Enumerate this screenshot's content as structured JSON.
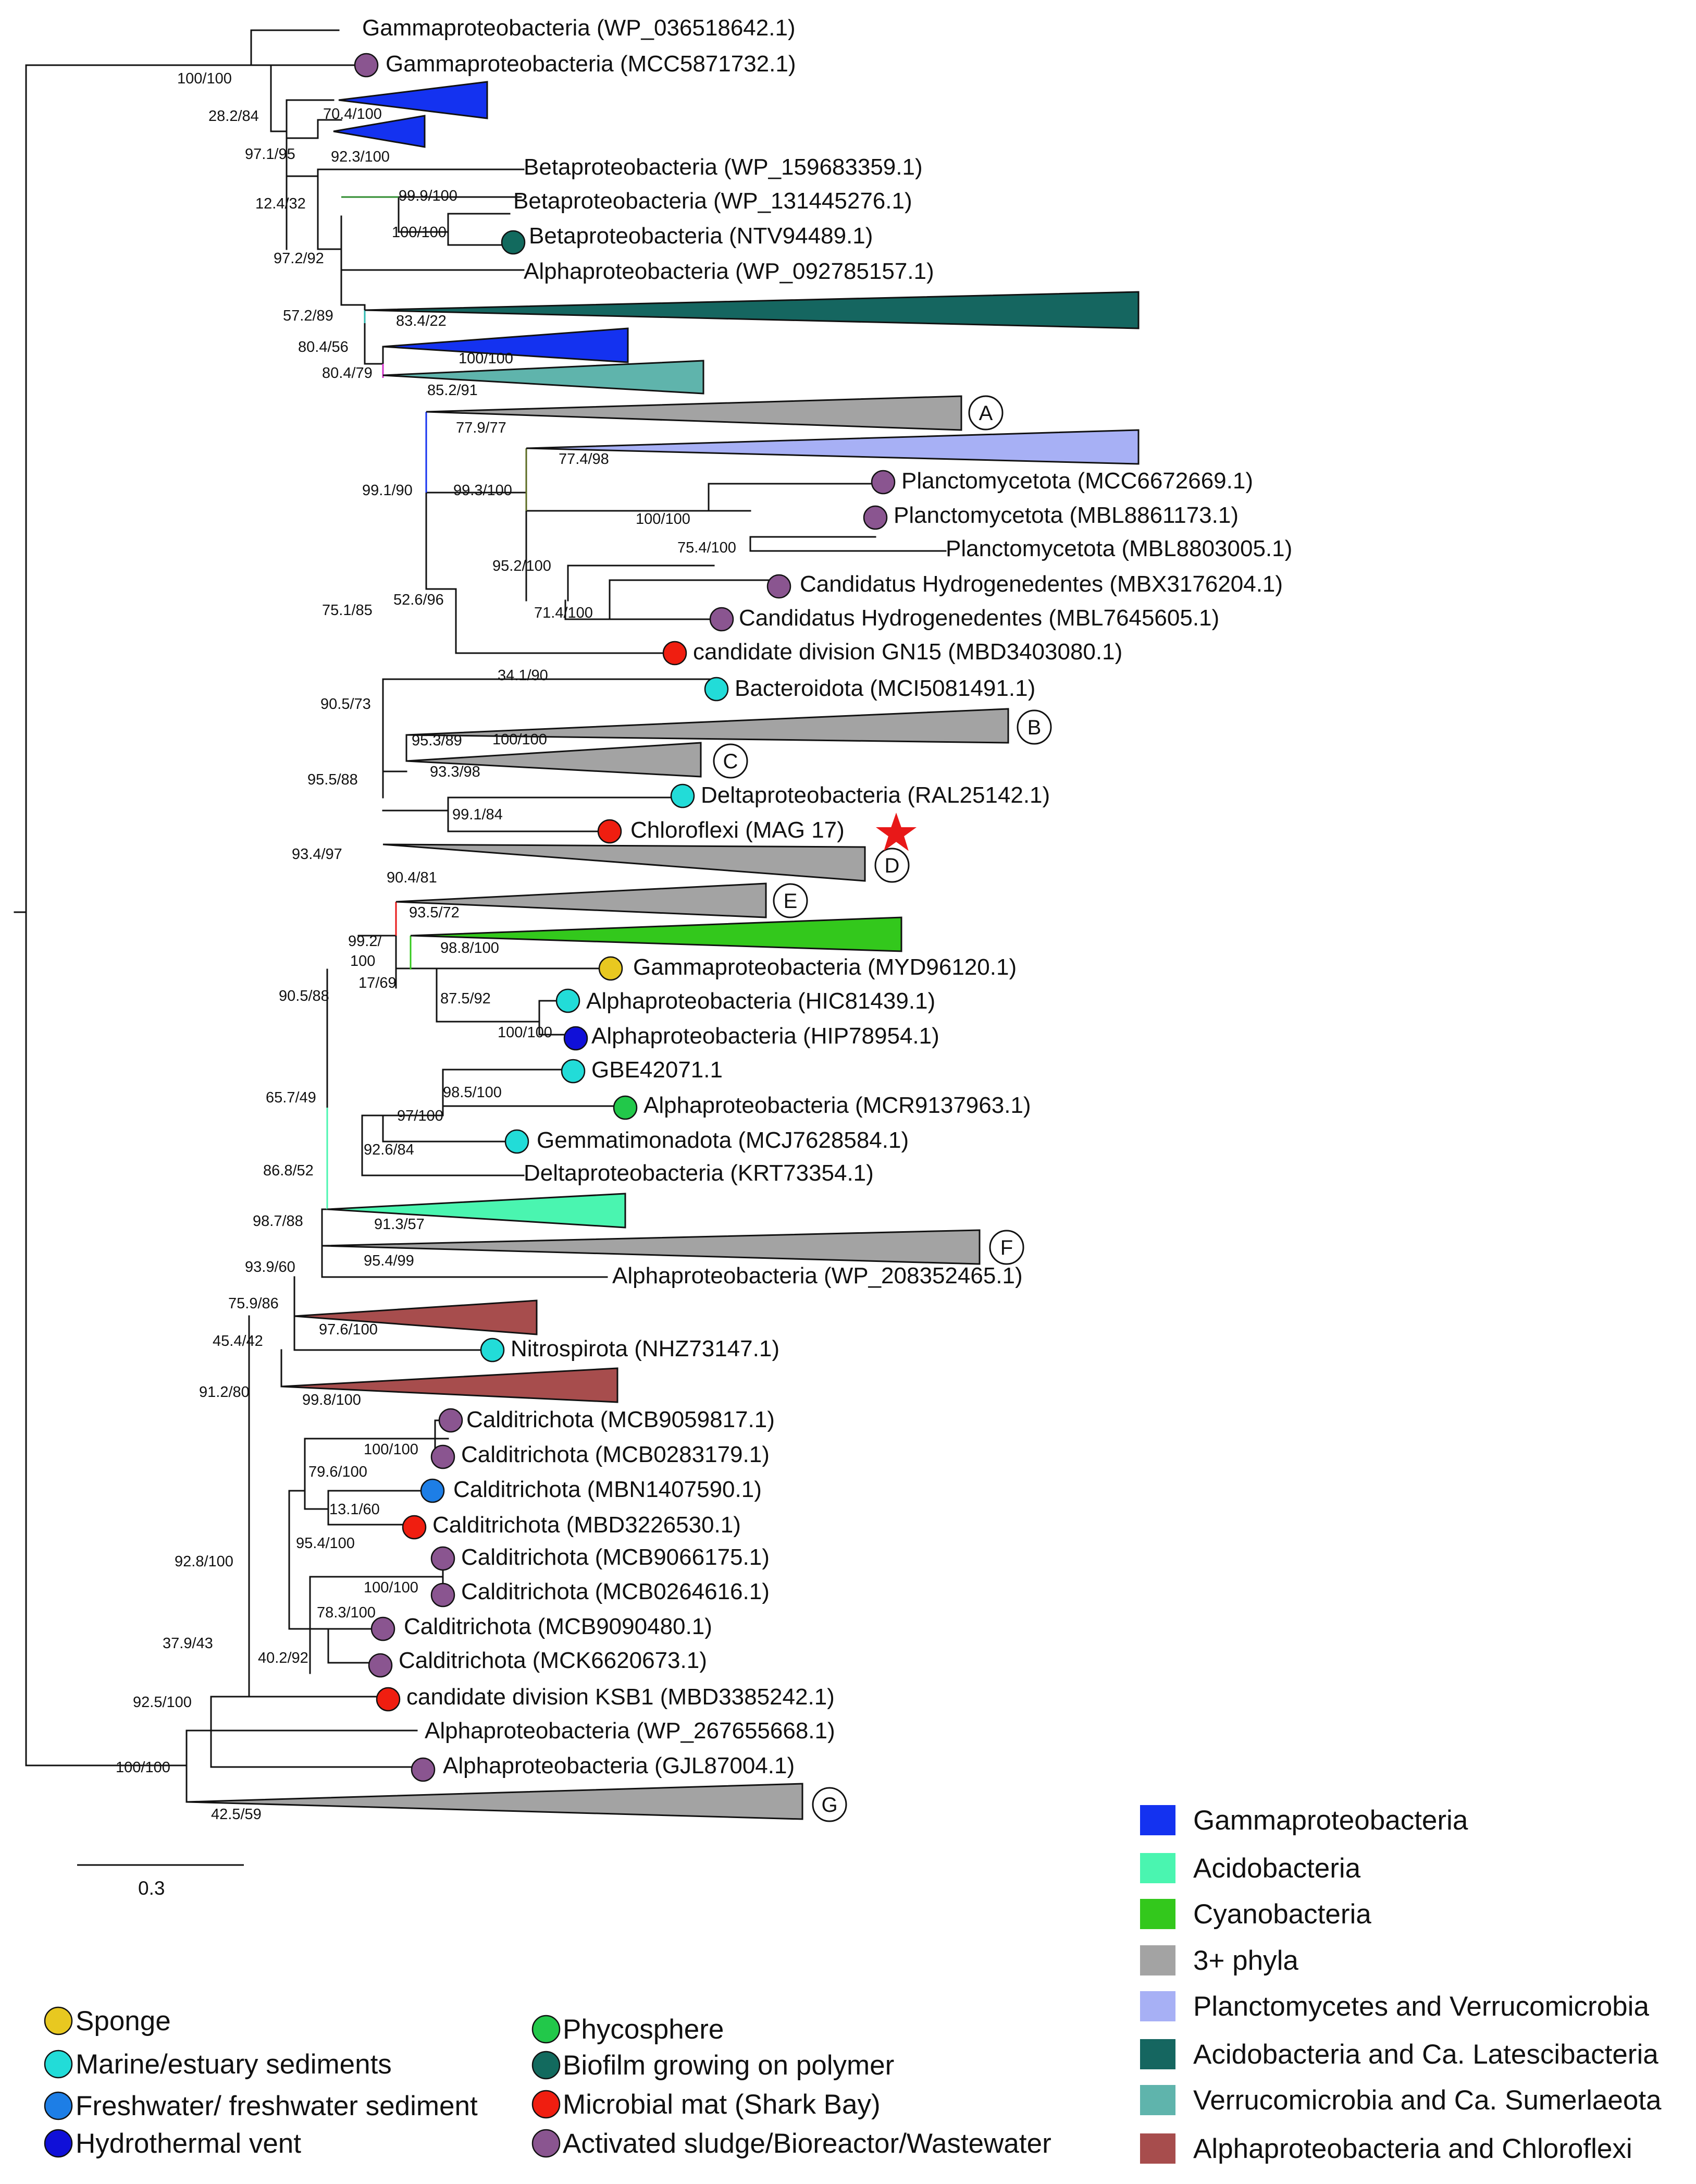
{
  "colors": {
    "sponge": "#e8c820",
    "marine": "#22dcd8",
    "freshwater": "#1d7ee6",
    "hydrothermal": "#1010d8",
    "phycosphere": "#22c84a",
    "biofilm": "#126a5e",
    "microbial_mat": "#f01e10",
    "sludge": "#8a5590",
    "gammaproteobacteria": "#1432f0",
    "acidobacteria": "#4af5b0",
    "cyanobacteria": "#33c81c",
    "three_phyla": "#a3a3a3",
    "plancto_verruco": "#a7b0f5",
    "acido_latesci": "#156660",
    "verruco_sumerl": "#5fb4ac",
    "alpha_chloro": "#a74d4d",
    "star": "#e81818"
  },
  "tree": {
    "leaves": {
      "l01": "Gammaproteobacteria (WP_036518642.1)",
      "l02": "Gammaproteobacteria (MCC5871732.1)",
      "l03": "Betaproteobacteria (WP_159683359.1)",
      "l04": "Betaproteobacteria (WP_131445276.1)",
      "l05": "Betaproteobacteria (NTV94489.1)",
      "l06": "Alphaproteobacteria (WP_092785157.1)",
      "l07": "Planctomycetota (MCC6672669.1)",
      "l08": "Planctomycetota (MBL8861173.1)",
      "l09": "Planctomycetota (MBL8803005.1)",
      "l10": "Candidatus Hydrogenedentes (MBX3176204.1)",
      "l11": "Candidatus Hydrogenedentes (MBL7645605.1)",
      "l12": "candidate division GN15 (MBD3403080.1)",
      "l13": "Bacteroidota (MCI5081491.1)",
      "l14": "Deltaproteobacteria (RAL25142.1)",
      "l15": "Chloroflexi (MAG 17)",
      "l16": "Gammaproteobacteria (MYD96120.1)",
      "l17": "Alphaproteobacteria (HIC81439.1)",
      "l18": "Alphaproteobacteria (HIP78954.1)",
      "l19": "GBE42071.1",
      "l20": "Alphaproteobacteria (MCR9137963.1)",
      "l21": "Gemmatimonadota (MCJ7628584.1)",
      "l22": "Deltaproteobacteria (KRT73354.1)",
      "l23": "Alphaproteobacteria (WP_208352465.1)",
      "l24": "Nitrospirota (NHZ73147.1)",
      "l25": "Calditrichota (MCB9059817.1)",
      "l26": "Calditrichota (MCB0283179.1)",
      "l27": "Calditrichota (MBN1407590.1)",
      "l28": "Calditrichota (MBD3226530.1)",
      "l29": "Calditrichota (MCB9066175.1)",
      "l30": "Calditrichota (MCB0264616.1)",
      "l31": "Calditrichota (MCB9090480.1)",
      "l32": "Calditrichota (MCK6620673.1)",
      "l33": "candidate division KSB1 (MBD3385242.1)",
      "l34": "Alphaproteobacteria (WP_267655668.1)",
      "l35": "Alphaproteobacteria (GJL87004.1)"
    },
    "supports": {
      "b01": "100/100",
      "b02": "28.2/84",
      "b03": "70.4/100",
      "b04": "97.1/95",
      "b05": "92.3/100",
      "b06": "99.9/100",
      "b07": "12.4/32",
      "b08": "100/100",
      "b09": "97.2/92",
      "b10": "57.2/89",
      "b11": "83.4/22",
      "b12": "80.4/56",
      "b13": "100/100",
      "b14": "80.4/79",
      "b15": "85.2/91",
      "b16": "77.9/77",
      "b17": "77.4/98",
      "b18": "99.1/90",
      "b19": "99.3/100",
      "b20": "100/100",
      "b21": "75.4/100",
      "b22": "95.2/100",
      "b23": "75.1/85",
      "b24": "52.6/96",
      "b25": "71.4/100",
      "b26": "34.1/90",
      "b27": "90.5/73",
      "b28": "95.3/89",
      "b29": "100/100",
      "b30": "93.3/98",
      "b31": "95.5/88",
      "b32": "99.1/84",
      "b33": "93.4/97",
      "b34": "90.4/81",
      "b35": "93.5/72",
      "b36": "99.2/",
      "b37": "100",
      "b38": "98.8/100",
      "b39": "17/69",
      "b40": "87.5/92",
      "b41": "100/100",
      "b42": "90.5/88",
      "b43": "98.5/100",
      "b44": "97/100",
      "b45": "65.7/49",
      "b46": "92.6/84",
      "b47": "86.8/52",
      "b48": "91.3/57",
      "b49": "98.7/88",
      "b50": "93.9/60",
      "b51": "95.4/99",
      "b52": "75.9/86",
      "b53": "97.6/100",
      "b54": "45.4/42",
      "b55": "99.8/100",
      "b56": "91.2/80",
      "b57": "100/100",
      "b58": "79.6/100",
      "b59": "13.1/60",
      "b60": "95.4/100",
      "b61": "100/100",
      "b62": "78.3/100",
      "b63": "92.8/100",
      "b64": "40.2/92",
      "b65": "37.9/43",
      "b66": "92.5/100",
      "b67": "100/100",
      "b68": "42.5/59"
    },
    "clade_labels": {
      "A": "A",
      "B": "B",
      "C": "C",
      "D": "D",
      "E": "E",
      "F": "F",
      "G": "G"
    },
    "scale_bar_label": "0.3",
    "scale_bar_value": 0.3
  },
  "legend": {
    "environments": {
      "sponge": "Sponge",
      "marine": "Marine/estuary sediments",
      "freshwater": "Freshwater/ freshwater sediment",
      "hydrothermal": "Hydrothermal vent",
      "phycosphere": "Phycosphere",
      "biofilm": "Biofilm growing on polymer",
      "microbial_mat": "Microbial mat (Shark Bay)",
      "sludge": "Activated sludge/Bioreactor/Wastewater"
    },
    "clades": {
      "gammaproteobacteria": "Gammaproteobacteria",
      "acidobacteria": "Acidobacteria",
      "cyanobacteria": "Cyanobacteria",
      "three_phyla": "3+ phyla",
      "plancto_verruco": "Planctomycetes and Verrucomicrobia",
      "acido_latesci": "Acidobacteria and Ca. Latescibacteria",
      "verruco_sumerl": "Verrucomicrobia and Ca. Sumerlaeota",
      "alpha_chloro": "Alphaproteobacteria and Chloroflexi"
    }
  }
}
